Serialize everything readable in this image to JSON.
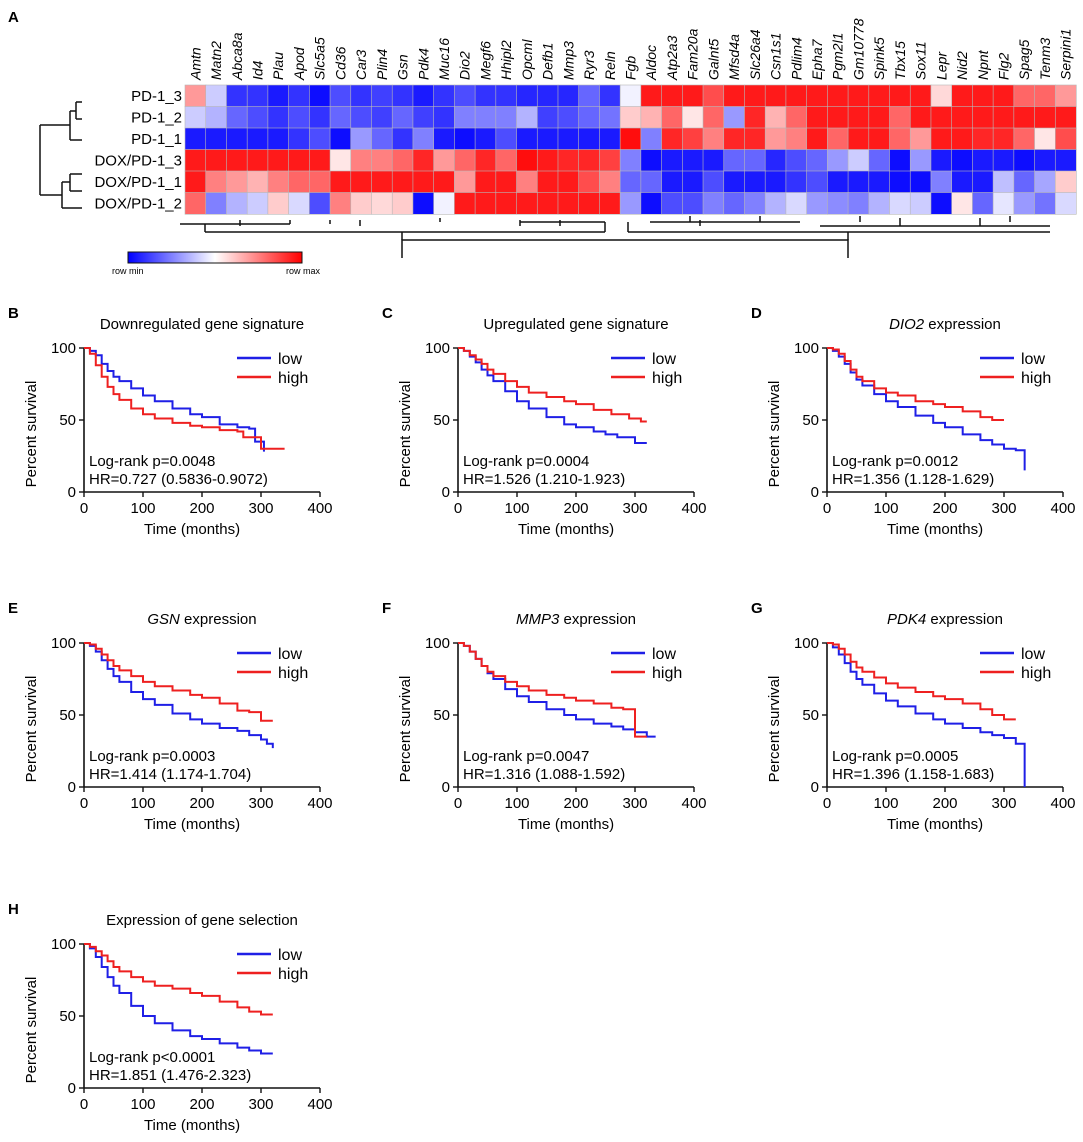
{
  "heatmap": {
    "panel_label": "A",
    "genes": [
      "Amtn",
      "Matn2",
      "Abca8a",
      "Id4",
      "Plau",
      "Apod",
      "Slc5a5",
      "Cd36",
      "Car3",
      "Plin4",
      "Gsn",
      "Pdk4",
      "Muc16",
      "Dio2",
      "Megf6",
      "Hhipl2",
      "Opcml",
      "Defb1",
      "Mmp3",
      "Ryr3",
      "Reln",
      "Fgb",
      "Aldoc",
      "Atp2a3",
      "Fam20a",
      "Galnt5",
      "Mfsd4a",
      "Slc26a4",
      "Csn1s1",
      "Pdlim4",
      "Epha7",
      "Pgm2l1",
      "Gm10778",
      "Spink5",
      "Tbx15",
      "Sox11",
      "Lepr",
      "Nid2",
      "Npnt",
      "Flg2",
      "Spag5",
      "Tenm3",
      "Serpini1"
    ],
    "samples": [
      "PD-1_3",
      "PD-1_2",
      "PD-1_1",
      "DOX/PD-1_3",
      "DOX/PD-1_1",
      "DOX/PD-1_2"
    ],
    "values": [
      [
        0.4,
        -0.2,
        -0.8,
        -0.8,
        -0.9,
        -0.8,
        -0.95,
        -0.7,
        -0.8,
        -0.75,
        -0.8,
        -0.9,
        -0.8,
        -0.7,
        -0.8,
        -0.8,
        -0.85,
        -0.85,
        -0.85,
        -0.6,
        -0.8,
        -0.05,
        0.9,
        0.9,
        0.9,
        0.7,
        0.9,
        0.9,
        0.9,
        0.9,
        0.9,
        0.9,
        0.9,
        0.9,
        0.9,
        0.9,
        0.15,
        0.9,
        0.9,
        0.9,
        0.6,
        0.6,
        0.4
      ],
      [
        -0.2,
        -0.3,
        -0.6,
        -0.7,
        -0.8,
        -0.7,
        -0.8,
        -0.6,
        -0.7,
        -0.75,
        -0.6,
        -0.75,
        -0.8,
        -0.5,
        -0.5,
        -0.5,
        -0.3,
        -0.75,
        -0.7,
        -0.6,
        -0.55,
        0.2,
        0.3,
        0.6,
        0.1,
        0.6,
        -0.4,
        0.85,
        0.3,
        0.6,
        0.9,
        0.9,
        0.9,
        0.9,
        0.6,
        0.9,
        0.9,
        0.9,
        0.9,
        0.9,
        0.9,
        0.9,
        0.9
      ],
      [
        -0.9,
        -0.9,
        -0.9,
        -0.9,
        -0.9,
        -0.8,
        -0.7,
        -0.95,
        -0.4,
        -0.6,
        -0.8,
        -0.5,
        -0.9,
        -0.95,
        -0.9,
        -0.7,
        -0.9,
        -0.9,
        -0.9,
        -0.9,
        -0.9,
        0.95,
        -0.5,
        0.85,
        0.75,
        0.5,
        0.85,
        0.85,
        0.4,
        0.5,
        0.9,
        0.6,
        0.9,
        0.9,
        0.6,
        0.4,
        0.9,
        0.9,
        0.85,
        0.85,
        0.6,
        0.1,
        0.7
      ],
      [
        0.9,
        0.9,
        0.9,
        0.9,
        0.9,
        0.9,
        0.9,
        0.1,
        0.5,
        0.5,
        0.6,
        0.85,
        0.4,
        0.6,
        0.85,
        0.6,
        0.95,
        0.9,
        0.85,
        0.85,
        0.75,
        -0.5,
        -0.95,
        -0.9,
        -0.9,
        -0.9,
        -0.6,
        -0.6,
        -0.85,
        -0.7,
        -0.6,
        -0.4,
        -0.2,
        -0.6,
        -0.95,
        -0.4,
        -0.9,
        -0.95,
        -0.9,
        -0.9,
        -0.95,
        -0.9,
        -0.9
      ],
      [
        0.9,
        0.5,
        0.4,
        0.3,
        0.5,
        0.6,
        0.6,
        0.9,
        0.9,
        0.9,
        0.9,
        0.9,
        0.9,
        0.4,
        0.9,
        0.9,
        0.5,
        0.9,
        0.9,
        0.7,
        0.5,
        -0.6,
        -0.6,
        -0.9,
        -0.9,
        -0.7,
        -0.9,
        -0.9,
        -0.9,
        -0.8,
        -0.7,
        -0.9,
        -0.9,
        -0.9,
        -0.95,
        -0.95,
        -0.5,
        -0.9,
        -0.9,
        -0.25,
        -0.6,
        -0.35,
        0.2
      ],
      [
        0.6,
        -0.5,
        -0.3,
        -0.2,
        0.2,
        -0.15,
        -0.7,
        0.5,
        0.2,
        0.15,
        0.2,
        -0.95,
        -0.05,
        0.9,
        0.9,
        0.9,
        0.9,
        0.9,
        0.9,
        0.9,
        0.9,
        -0.4,
        -0.95,
        -0.7,
        -0.7,
        -0.5,
        -0.6,
        -0.5,
        -0.3,
        -0.15,
        -0.4,
        -0.45,
        -0.5,
        -0.3,
        -0.15,
        -0.2,
        -0.95,
        0.1,
        -0.6,
        -0.1,
        -0.4,
        -0.55,
        -0.15
      ]
    ],
    "scale_min_label": "row min",
    "scale_max_label": "row max",
    "color_min": "#0000ff",
    "color_mid": "#ffffff",
    "color_max": "#ff0000"
  },
  "legend": {
    "low": "low",
    "high": "high",
    "low_color": "#1f1fe6",
    "high_color": "#ee2020"
  },
  "axes": {
    "xlabel": "Time (months)",
    "ylabel": "Percent survival",
    "xticks": [
      0,
      100,
      200,
      300,
      400
    ],
    "yticks": [
      0,
      50,
      100
    ]
  },
  "chart_data": [
    {
      "type": "line",
      "panel": "B",
      "title": "Downregulated gene signature",
      "title_italic": "",
      "xlabel": "Time (months)",
      "ylabel": "Percent survival",
      "xlim": [
        0,
        400
      ],
      "ylim": [
        0,
        100
      ],
      "stat_line1": "Log-rank p=0.0048",
      "stat_line2": "HR=0.727 (0.5836-0.9072)",
      "series": [
        {
          "name": "low",
          "x": [
            0,
            10,
            20,
            30,
            40,
            50,
            60,
            80,
            100,
            120,
            150,
            180,
            200,
            230,
            260,
            280,
            290,
            300,
            305
          ],
          "y": [
            100,
            98,
            95,
            89,
            84,
            80,
            77,
            72,
            67,
            63,
            58,
            54,
            52,
            47,
            45,
            44,
            35,
            35,
            28
          ]
        },
        {
          "name": "high",
          "x": [
            0,
            10,
            20,
            30,
            40,
            50,
            60,
            80,
            100,
            120,
            150,
            180,
            200,
            230,
            260,
            270,
            300,
            320,
            340
          ],
          "y": [
            100,
            96,
            88,
            80,
            73,
            68,
            64,
            58,
            54,
            51,
            48,
            46,
            45,
            43,
            42,
            38,
            30,
            30,
            30
          ]
        }
      ]
    },
    {
      "type": "line",
      "panel": "C",
      "title": "Upregulated gene signature",
      "title_italic": "",
      "xlabel": "Time (months)",
      "ylabel": "Percent survival",
      "xlim": [
        0,
        400
      ],
      "ylim": [
        0,
        100
      ],
      "stat_line1": "Log-rank p=0.0004",
      "stat_line2": "HR=1.526 (1.210-1.923)",
      "series": [
        {
          "name": "low",
          "x": [
            0,
            10,
            20,
            30,
            40,
            50,
            60,
            80,
            100,
            120,
            150,
            180,
            200,
            230,
            250,
            270,
            300,
            320
          ],
          "y": [
            100,
            98,
            94,
            90,
            85,
            81,
            77,
            70,
            63,
            58,
            52,
            47,
            45,
            42,
            40,
            38,
            34,
            34
          ]
        },
        {
          "name": "high",
          "x": [
            0,
            10,
            20,
            30,
            40,
            50,
            60,
            80,
            100,
            120,
            150,
            180,
            200,
            230,
            260,
            290,
            310,
            320
          ],
          "y": [
            100,
            98,
            95,
            92,
            89,
            85,
            82,
            77,
            73,
            69,
            66,
            63,
            61,
            57,
            54,
            51,
            49,
            49
          ]
        }
      ]
    },
    {
      "type": "line",
      "panel": "D",
      "title": " expression",
      "title_italic": "DIO2",
      "xlabel": "Time (months)",
      "ylabel": "Percent survival",
      "xlim": [
        0,
        400
      ],
      "ylim": [
        0,
        100
      ],
      "stat_line1": "Log-rank p=0.0012",
      "stat_line2": "HR=1.356 (1.128-1.629)",
      "series": [
        {
          "name": "low",
          "x": [
            0,
            10,
            20,
            30,
            40,
            50,
            60,
            80,
            100,
            120,
            150,
            180,
            200,
            230,
            260,
            280,
            300,
            320,
            330,
            335
          ],
          "y": [
            100,
            98,
            94,
            89,
            83,
            78,
            74,
            68,
            63,
            59,
            53,
            48,
            45,
            40,
            36,
            33,
            30,
            29,
            29,
            15
          ]
        },
        {
          "name": "high",
          "x": [
            0,
            10,
            20,
            30,
            40,
            50,
            60,
            80,
            100,
            120,
            150,
            180,
            200,
            230,
            260,
            280,
            300
          ],
          "y": [
            100,
            99,
            96,
            91,
            85,
            80,
            77,
            72,
            69,
            67,
            63,
            61,
            59,
            56,
            52,
            50,
            50
          ]
        }
      ]
    },
    {
      "type": "line",
      "panel": "E",
      "title": " expression",
      "title_italic": "GSN",
      "xlabel": "Time (months)",
      "ylabel": "Percent survival",
      "xlim": [
        0,
        400
      ],
      "ylim": [
        0,
        100
      ],
      "stat_line1": "Log-rank p=0.0003",
      "stat_line2": "HR=1.414 (1.174-1.704)",
      "series": [
        {
          "name": "low",
          "x": [
            0,
            10,
            20,
            30,
            40,
            50,
            60,
            80,
            100,
            120,
            150,
            180,
            200,
            230,
            260,
            280,
            300,
            310,
            320
          ],
          "y": [
            100,
            98,
            94,
            88,
            82,
            77,
            73,
            66,
            61,
            57,
            51,
            47,
            44,
            41,
            39,
            36,
            33,
            30,
            27
          ]
        },
        {
          "name": "high",
          "x": [
            0,
            10,
            20,
            30,
            40,
            50,
            60,
            80,
            100,
            120,
            150,
            180,
            200,
            230,
            260,
            280,
            300,
            320
          ],
          "y": [
            100,
            99,
            96,
            92,
            88,
            84,
            81,
            77,
            73,
            70,
            67,
            64,
            62,
            58,
            53,
            52,
            46,
            46
          ]
        }
      ]
    },
    {
      "type": "line",
      "panel": "F",
      "title": " expression",
      "title_italic": "MMP3",
      "xlabel": "Time (months)",
      "ylabel": "Percent survival",
      "xlim": [
        0,
        400
      ],
      "ylim": [
        0,
        100
      ],
      "stat_line1": "Log-rank p=0.0047",
      "stat_line2": "HR=1.316 (1.088-1.592)",
      "series": [
        {
          "name": "low",
          "x": [
            0,
            10,
            20,
            30,
            40,
            50,
            60,
            80,
            100,
            120,
            150,
            180,
            200,
            230,
            260,
            280,
            300,
            320,
            335
          ],
          "y": [
            100,
            98,
            94,
            89,
            84,
            79,
            75,
            68,
            63,
            59,
            54,
            50,
            47,
            44,
            42,
            40,
            38,
            35,
            35
          ]
        },
        {
          "name": "high",
          "x": [
            0,
            10,
            20,
            30,
            40,
            50,
            60,
            80,
            100,
            120,
            150,
            180,
            200,
            230,
            260,
            280,
            300,
            300,
            320
          ],
          "y": [
            100,
            98,
            94,
            89,
            84,
            80,
            77,
            73,
            70,
            67,
            64,
            62,
            60,
            58,
            55,
            54,
            53,
            35,
            35
          ]
        }
      ]
    },
    {
      "type": "line",
      "panel": "G",
      "title": " expression",
      "title_italic": "PDK4",
      "xlabel": "Time (months)",
      "ylabel": "Percent survival",
      "xlim": [
        0,
        400
      ],
      "ylim": [
        0,
        100
      ],
      "stat_line1": "Log-rank p=0.0005",
      "stat_line2": "HR=1.396 (1.158-1.683)",
      "series": [
        {
          "name": "low",
          "x": [
            0,
            10,
            20,
            30,
            40,
            50,
            60,
            80,
            100,
            120,
            150,
            180,
            200,
            230,
            260,
            280,
            300,
            320,
            335,
            335
          ],
          "y": [
            100,
            97,
            92,
            86,
            80,
            75,
            71,
            65,
            60,
            56,
            51,
            47,
            44,
            41,
            38,
            36,
            34,
            30,
            30,
            0
          ]
        },
        {
          "name": "high",
          "x": [
            0,
            10,
            20,
            30,
            40,
            50,
            60,
            80,
            100,
            120,
            150,
            180,
            200,
            230,
            260,
            280,
            300,
            320
          ],
          "y": [
            100,
            99,
            96,
            92,
            87,
            83,
            80,
            76,
            72,
            69,
            66,
            63,
            61,
            58,
            54,
            50,
            47,
            47
          ]
        }
      ]
    },
    {
      "type": "line",
      "panel": "H",
      "title": "Expression of gene selection",
      "title_italic": "",
      "xlabel": "Time (months)",
      "ylabel": "Percent survival",
      "xlim": [
        0,
        400
      ],
      "ylim": [
        0,
        100
      ],
      "stat_line1": "Log-rank p<0.0001",
      "stat_line2": "HR=1.851 (1.476-2.323)",
      "series": [
        {
          "name": "low",
          "x": [
            0,
            10,
            20,
            30,
            40,
            50,
            60,
            80,
            100,
            120,
            150,
            180,
            200,
            230,
            260,
            280,
            300,
            320
          ],
          "y": [
            100,
            97,
            91,
            84,
            77,
            71,
            66,
            57,
            50,
            45,
            40,
            36,
            34,
            31,
            28,
            26,
            24,
            24
          ]
        },
        {
          "name": "high",
          "x": [
            0,
            10,
            20,
            30,
            40,
            50,
            60,
            80,
            100,
            120,
            150,
            180,
            200,
            230,
            260,
            280,
            300,
            320
          ],
          "y": [
            100,
            98,
            95,
            92,
            88,
            84,
            81,
            77,
            74,
            71,
            69,
            66,
            64,
            60,
            56,
            53,
            51,
            51
          ]
        }
      ]
    }
  ]
}
